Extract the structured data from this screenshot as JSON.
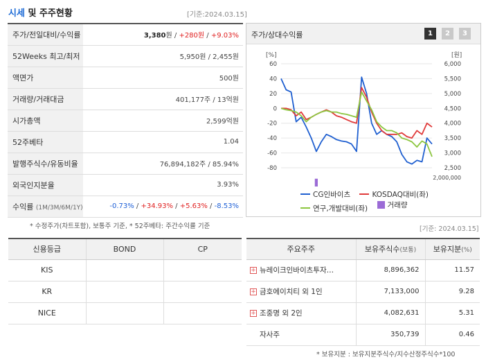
{
  "header": {
    "title_accent": "시세",
    "title_rest": " 및 주주현황",
    "ref_date": "[기준:2024.03.15]"
  },
  "price_table": {
    "rows": [
      {
        "label": "주가/전일대비/수익률",
        "main": "3,380",
        "unit": "원",
        "sep1": " / ",
        "change": "+280원",
        "sep2": " / ",
        "rate": "+9.03%"
      },
      {
        "label": "52Weeks 최고/최저",
        "value": "5,950원 / 2,455원"
      },
      {
        "label": "액면가",
        "value": "500원"
      },
      {
        "label": "거래량/거래대금",
        "value": "401,177주 / 13억원"
      },
      {
        "label": "시가총액",
        "value": "2,599억원"
      },
      {
        "label": "52주베타",
        "value": "1.04"
      },
      {
        "label": "발행주식수/유동비율",
        "value": "76,894,182주 / 85.94%"
      },
      {
        "label": "외국인지분율",
        "value": "3.93%"
      },
      {
        "label": "수익률",
        "sub_label": "(1M/3M/6M/1Y)",
        "r1": "-0.73%",
        "r2": "+34.93%",
        "r3": "+5.63%",
        "r4": "-8.53%",
        "sep": " / "
      }
    ],
    "footnote": "* 수정주가(차트포함), 보통주 기준, * 52주베타: 주간수익률 기준"
  },
  "chart_panel": {
    "title": "주가/상대수익률",
    "tabs": [
      "1",
      "2",
      "3"
    ],
    "active_tab": "1"
  },
  "chart_data": {
    "type": "line",
    "left_axis_unit": "[%]",
    "right_axis_unit": "[원]",
    "left_ticks": [
      "60",
      "40",
      "20",
      "0",
      "-20",
      "-40",
      "-60",
      "-80"
    ],
    "right_ticks": [
      "6,000",
      "5,500",
      "5,000",
      "4,500",
      "4,000",
      "3,500",
      "3,000",
      "2,500"
    ],
    "volume_ticks": [
      "2,000,000",
      "0"
    ],
    "x_labels": [
      "2022/03/31",
      "2023/01/31",
      "2023/11/30"
    ],
    "ylim_left": [
      -80,
      60
    ],
    "series": [
      {
        "name": "CG인바이츠",
        "color": "#1f5fd0",
        "values": [
          40,
          25,
          22,
          -18,
          -12,
          -25,
          -40,
          -58,
          -45,
          -35,
          -38,
          -42,
          -44,
          -45,
          -48,
          -58,
          42,
          20,
          -20,
          -35,
          -30,
          -35,
          -38,
          -45,
          -62,
          -72,
          -75,
          -70,
          -72,
          -40,
          -48
        ]
      },
      {
        "name": "KOSDAQ대비(좌)",
        "color": "#e03a3a",
        "values": [
          0,
          0,
          -2,
          -10,
          -5,
          -15,
          -12,
          -8,
          -5,
          -2,
          -5,
          -10,
          -12,
          -15,
          -18,
          -20,
          28,
          15,
          -5,
          -20,
          -30,
          -35,
          -35,
          -35,
          -33,
          -38,
          -40,
          -30,
          -35,
          -20,
          -25
        ]
      },
      {
        "name": "연구,개발대비(좌)",
        "color": "#8cc63f",
        "values": [
          0,
          -2,
          -3,
          -5,
          -10,
          -18,
          -12,
          -8,
          -5,
          -3,
          -5,
          -5,
          -7,
          -8,
          -10,
          -12,
          22,
          10,
          -2,
          -18,
          -25,
          -30,
          -30,
          -33,
          -40,
          -42,
          -45,
          -52,
          -44,
          -48,
          -65
        ]
      }
    ],
    "volume": {
      "name": "거래량",
      "color": "#9b6bd6",
      "values": [
        4,
        3,
        2,
        2,
        2,
        2,
        3,
        30,
        3,
        2,
        2,
        3,
        2,
        2,
        4,
        2,
        3,
        4,
        8,
        3,
        3,
        2,
        2,
        2,
        4,
        3,
        2,
        3,
        2,
        4,
        5
      ]
    }
  },
  "credit": {
    "headers": [
      "신용등급",
      "BOND",
      "CP"
    ],
    "rows": [
      {
        "agency": "KIS",
        "bond": "",
        "cp": ""
      },
      {
        "agency": "KR",
        "bond": "",
        "cp": ""
      },
      {
        "agency": "NICE",
        "bond": "",
        "cp": ""
      }
    ]
  },
  "holders": {
    "ref_date": "[기준: 2024.03.15]",
    "headers": {
      "name": "주요주주",
      "shares": "보유주식수",
      "shares_unit": "(보통)",
      "ratio": "보유지분",
      "ratio_unit": "(%)"
    },
    "rows": [
      {
        "name": "뉴레이크인바이츠투자…",
        "shares": "8,896,362",
        "ratio": "11.57",
        "expandable": true
      },
      {
        "name": "금호에이치티 외 1인",
        "shares": "7,133,000",
        "ratio": "9.28",
        "expandable": true
      },
      {
        "name": "조중명 외 2인",
        "shares": "4,082,631",
        "ratio": "5.31",
        "expandable": true
      },
      {
        "name": "자사주",
        "shares": "350,739",
        "ratio": "0.46",
        "expandable": false
      }
    ],
    "footnote": "* 보유지분 : 보유지분주식수/지수산정주식수*100"
  }
}
